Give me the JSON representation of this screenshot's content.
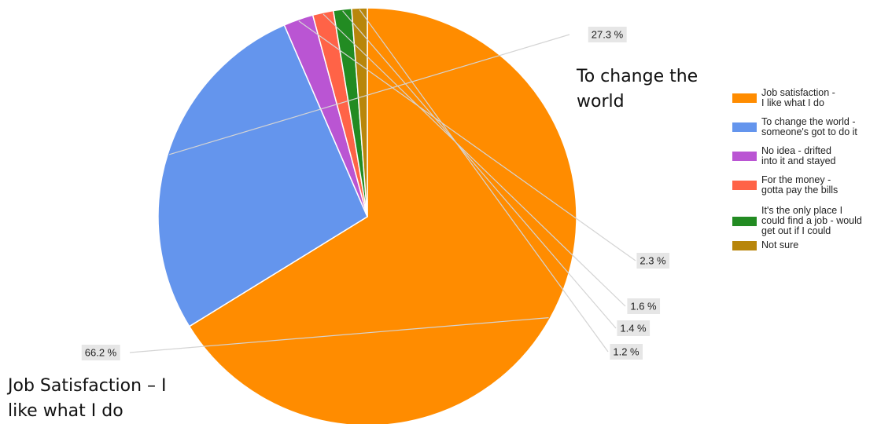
{
  "chart_data": {
    "type": "pie",
    "slices": [
      {
        "label": "Job satisfaction - I like what I do",
        "value": 66.2,
        "display": "66.2 %",
        "color": "#ff8c00"
      },
      {
        "label": "To change the world - someone's got to do it",
        "value": 27.3,
        "display": "27.3 %",
        "color": "#6495ed"
      },
      {
        "label": "No idea - drifted into it and stayed",
        "value": 2.3,
        "display": "2.3 %",
        "color": "#ba55d3"
      },
      {
        "label": "For the money - gotta pay the bills",
        "value": 1.6,
        "display": "1.6 %",
        "color": "#ff6347"
      },
      {
        "label": "It's the only place I could find a job - would get out if I could",
        "value": 1.4,
        "display": "1.4 %",
        "color": "#228b22"
      },
      {
        "label": "Not sure",
        "value": 1.2,
        "display": "1.2 %",
        "color": "#b8860b"
      }
    ],
    "start_angle_deg": 0,
    "direction": "clockwise",
    "legend_position": "right"
  },
  "legend": {
    "items": [
      {
        "line1": "Job satisfaction -",
        "line2": "I like what I do",
        "line3": "",
        "color": "#ff8c00"
      },
      {
        "line1": "To change the world -",
        "line2": "someone's got to do it",
        "line3": "",
        "color": "#6495ed"
      },
      {
        "line1": "No idea - drifted",
        "line2": "into it and stayed",
        "line3": "",
        "color": "#ba55d3"
      },
      {
        "line1": "For the money -",
        "line2": "gotta pay the bills",
        "line3": "",
        "color": "#ff6347"
      },
      {
        "line1": "It's the only place I",
        "line2": "could find a job - would",
        "line3": "get out if I could",
        "color": "#228b22"
      },
      {
        "line1": "Not sure",
        "line2": "",
        "line3": "",
        "color": "#b8860b"
      }
    ]
  },
  "annotations": {
    "world": {
      "line1": "To change the",
      "line2": "world"
    },
    "job": {
      "line1": "Job Satisfaction – I",
      "line2": "like what I do"
    }
  }
}
